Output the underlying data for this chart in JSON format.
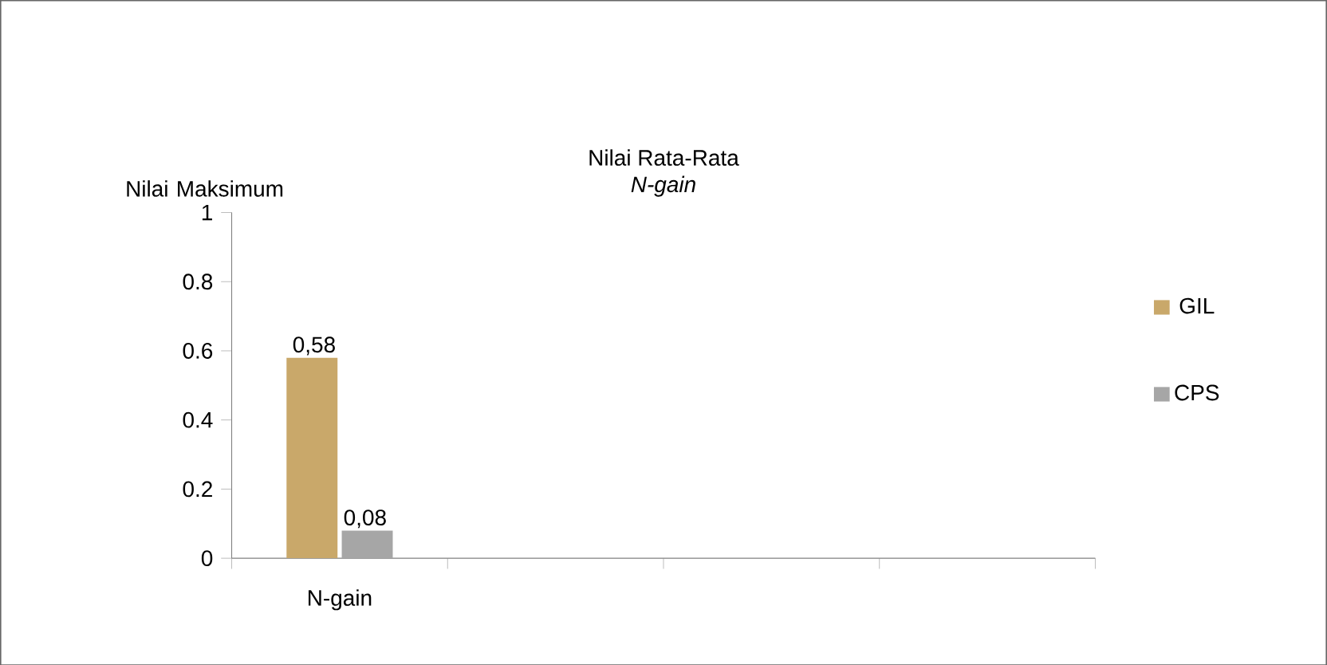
{
  "chart_data": {
    "type": "bar",
    "title": "Nilai Rata-Rata",
    "subtitle": "N-gain",
    "ylabel": "Nilai Maksimum",
    "categories": [
      "N-gain",
      null,
      null,
      null
    ],
    "series": [
      {
        "name": "GIL",
        "color": "#c9a86a",
        "values": [
          0.58,
          null,
          null,
          null
        ],
        "value_labels": [
          "0,58",
          null,
          null,
          null
        ]
      },
      {
        "name": "CPS",
        "color": "#a6a6a6",
        "values": [
          0.08,
          null,
          null,
          null
        ],
        "value_labels": [
          "0,08",
          null,
          null,
          null
        ]
      }
    ],
    "ylim": [
      0,
      1
    ],
    "yticks": [
      0,
      0.2,
      0.4,
      0.6,
      0.8,
      1
    ],
    "legend": "right",
    "grid": false
  }
}
